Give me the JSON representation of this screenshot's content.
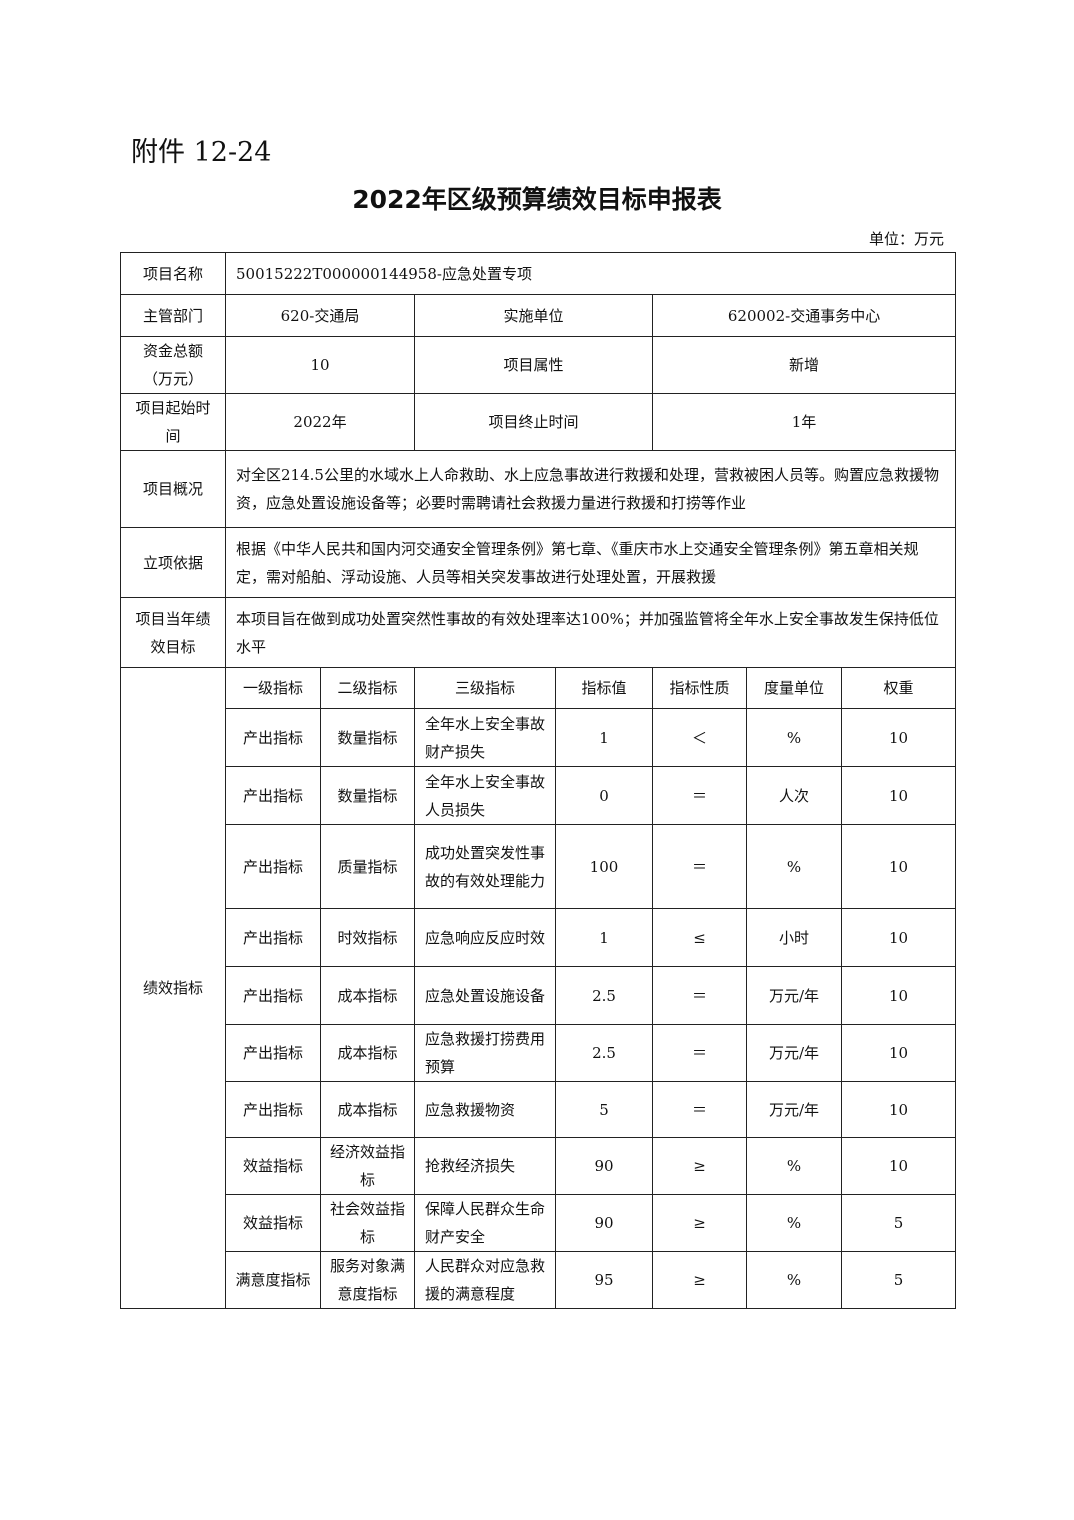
{
  "attachment": "附件 12-24",
  "title": "2022年区级预算绩效目标申报表",
  "unit": "单位：万元",
  "info": {
    "project_name_label": "项目名称",
    "project_name": "50015222T000000144958-应急处置专项",
    "dept_label": "主管部门",
    "dept": "620-交通局",
    "impl_label": "实施单位",
    "impl": "620002-交通事务中心",
    "funds_label": "资金总额（万元）",
    "funds": "10",
    "attr_label": "项目属性",
    "attr": "新增",
    "start_label": "项目起始时间",
    "start": "2022年",
    "end_label": "项目终止时间",
    "end": "1年",
    "overview_label": "项目概况",
    "overview": "对全区214.5公里的水域水上人命救助、水上应急事故进行救援和处理，营救被困人员等。购置应急救援物资，应急处置设施设备等；必要时需聘请社会救援力量进行救援和打捞等作业",
    "basis_label": "立项依据",
    "basis": "根据《中华人民共和国内河交通安全管理条例》第七章、《重庆市水上交通安全管理条例》第五章相关规定，需对船舶、浮动设施、人员等相关突发事故进行处理处置，开展救援",
    "goal_label": "项目当年绩效目标",
    "goal": "本项目旨在做到成功处置突然性事故的有效处理率达100%；并加强监管将全年水上安全事故发生保持低位水平"
  },
  "indicators": {
    "label": "绩效指标",
    "headers": [
      "一级指标",
      "二级指标",
      "三级指标",
      "指标值",
      "指标性质",
      "度量单位",
      "权重"
    ],
    "rows": [
      [
        "产出指标",
        "数量指标",
        "全年水上安全事故财产损失",
        "1",
        "＜",
        "%",
        "10"
      ],
      [
        "产出指标",
        "数量指标",
        "全年水上安全事故人员损失",
        "0",
        "＝",
        "人次",
        "10"
      ],
      [
        "产出指标",
        "质量指标",
        "成功处置突发性事故的有效处理能力",
        "100",
        "＝",
        "%",
        "10"
      ],
      [
        "产出指标",
        "时效指标",
        "应急响应反应时效",
        "1",
        "≤",
        "小时",
        "10"
      ],
      [
        "产出指标",
        "成本指标",
        "应急处置设施设备",
        "2.5",
        "＝",
        "万元/年",
        "10"
      ],
      [
        "产出指标",
        "成本指标",
        "应急救援打捞费用预算",
        "2.5",
        "＝",
        "万元/年",
        "10"
      ],
      [
        "产出指标",
        "成本指标",
        "应急救援物资",
        "5",
        "＝",
        "万元/年",
        "10"
      ],
      [
        "效益指标",
        "经济效益指标",
        "抢救经济损失",
        "90",
        "≥",
        "%",
        "10"
      ],
      [
        "效益指标",
        "社会效益指标",
        "保障人民群众生命财产安全",
        "90",
        "≥",
        "%",
        "5"
      ],
      [
        "满意度指标",
        "服务对象满意度指标",
        "人民群众对应急救援的满意程度",
        "95",
        "≥",
        "%",
        "5"
      ]
    ]
  }
}
